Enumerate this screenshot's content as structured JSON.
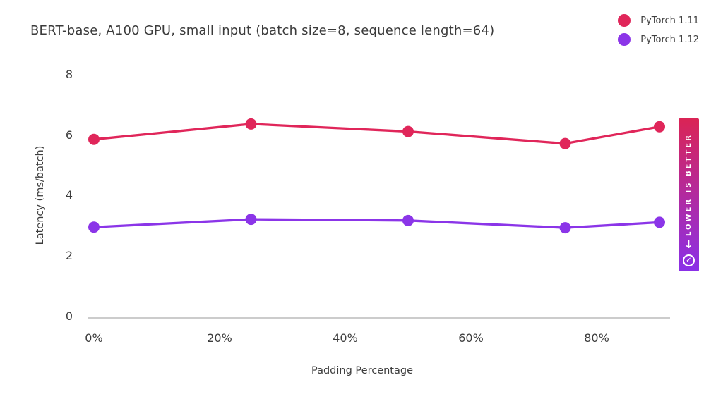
{
  "title": "BERT-base, A100 GPU, small input (batch size=8, sequence length=64)",
  "legend": [
    {
      "label": "PyTorch 1.11",
      "color": "#e0265a"
    },
    {
      "label": "PyTorch 1.12",
      "color": "#8b35e8"
    }
  ],
  "badge": {
    "text": "LOWER IS BETTER",
    "arrow_icon": "↓",
    "check_icon": "✓",
    "gradient_top": "#da2455",
    "gradient_bottom": "#8a30e8"
  },
  "colors": {
    "axis_line": "#cccccc",
    "text": "#3b3b3b",
    "background": "#ffffff"
  },
  "chart_data": {
    "type": "line",
    "title": "BERT-base, A100 GPU, small input (batch size=8, sequence length=64)",
    "xlabel": "Padding Percentage",
    "ylabel": "Latency (ms/batch)",
    "x": [
      0,
      25,
      50,
      75,
      90
    ],
    "xticks": [
      0,
      20,
      40,
      60,
      80
    ],
    "xtick_labels": [
      "0%",
      "20%",
      "40%",
      "60%",
      "80%"
    ],
    "yticks": [
      0,
      2,
      4,
      6,
      8
    ],
    "ylim": [
      0,
      8
    ],
    "grid": false,
    "legend_position": "top-right",
    "series": [
      {
        "name": "PyTorch 1.11",
        "color": "#e0265a",
        "values": [
          5.86,
          6.37,
          6.12,
          5.72,
          6.28
        ]
      },
      {
        "name": "PyTorch 1.12",
        "color": "#8b35e8",
        "values": [
          2.95,
          3.21,
          3.17,
          2.93,
          3.11
        ]
      }
    ]
  }
}
